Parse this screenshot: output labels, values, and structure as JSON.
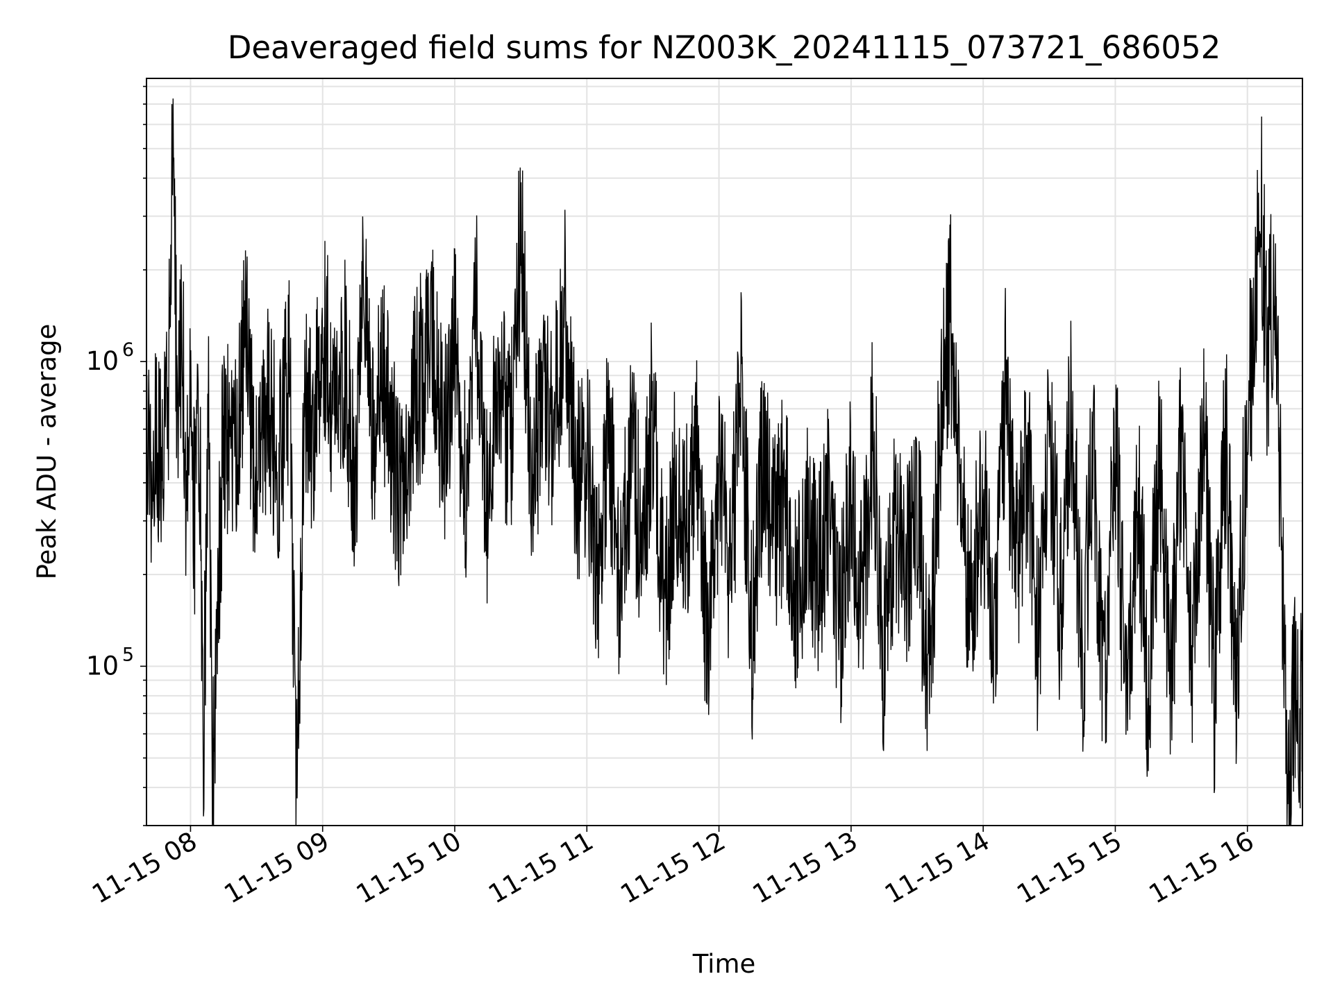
{
  "chart_data": {
    "type": "line",
    "title": "Deaveraged field sums for NZ003K_20241115_073721_686052",
    "xlabel": "Time",
    "ylabel": "Peak ADU - average",
    "yscale": "log",
    "xlim": [
      "2024-11-15 07:40",
      "2024-11-15 16:25"
    ],
    "ylim": [
      30000,
      8500000
    ],
    "grid": true,
    "line_color": "#000000",
    "x_ticks": [
      {
        "value": "2024-11-15 08:00",
        "label": "11-15 08"
      },
      {
        "value": "2024-11-15 09:00",
        "label": "11-15 09"
      },
      {
        "value": "2024-11-15 10:00",
        "label": "11-15 10"
      },
      {
        "value": "2024-11-15 11:00",
        "label": "11-15 11"
      },
      {
        "value": "2024-11-15 12:00",
        "label": "11-15 12"
      },
      {
        "value": "2024-11-15 13:00",
        "label": "11-15 13"
      },
      {
        "value": "2024-11-15 14:00",
        "label": "11-15 14"
      },
      {
        "value": "2024-11-15 15:00",
        "label": "11-15 15"
      },
      {
        "value": "2024-11-15 16:00",
        "label": "11-15 16"
      }
    ],
    "y_ticks": [
      {
        "value": 100000,
        "base": "10",
        "exp": "5"
      },
      {
        "value": 1000000,
        "base": "10",
        "exp": "6"
      }
    ],
    "series": [
      {
        "x": [
          "2024-11-15 07:40",
          "2024-11-15 07:44",
          "2024-11-15 07:48",
          "2024-11-15 07:50",
          "2024-11-15 07:52",
          "2024-11-15 07:54",
          "2024-11-15 07:56",
          "2024-11-15 07:58",
          "2024-11-15 08:00",
          "2024-11-15 08:02",
          "2024-11-15 08:04",
          "2024-11-15 08:06",
          "2024-11-15 08:08",
          "2024-11-15 08:10",
          "2024-11-15 08:15",
          "2024-11-15 08:20",
          "2024-11-15 08:25",
          "2024-11-15 08:30",
          "2024-11-15 08:35",
          "2024-11-15 08:40",
          "2024-11-15 08:45",
          "2024-11-15 08:48",
          "2024-11-15 08:52",
          "2024-11-15 08:56",
          "2024-11-15 09:00",
          "2024-11-15 09:05",
          "2024-11-15 09:10",
          "2024-11-15 09:15",
          "2024-11-15 09:18",
          "2024-11-15 09:22",
          "2024-11-15 09:28",
          "2024-11-15 09:35",
          "2024-11-15 09:40",
          "2024-11-15 09:45",
          "2024-11-15 09:50",
          "2024-11-15 09:55",
          "2024-11-15 10:00",
          "2024-11-15 10:05",
          "2024-11-15 10:10",
          "2024-11-15 10:15",
          "2024-11-15 10:20",
          "2024-11-15 10:25",
          "2024-11-15 10:30",
          "2024-11-15 10:35",
          "2024-11-15 10:40",
          "2024-11-15 10:45",
          "2024-11-15 10:50",
          "2024-11-15 10:55",
          "2024-11-15 11:00",
          "2024-11-15 11:05",
          "2024-11-15 11:10",
          "2024-11-15 11:15",
          "2024-11-15 11:20",
          "2024-11-15 11:25",
          "2024-11-15 11:30",
          "2024-11-15 11:35",
          "2024-11-15 11:40",
          "2024-11-15 11:45",
          "2024-11-15 11:50",
          "2024-11-15 11:55",
          "2024-11-15 12:00",
          "2024-11-15 12:05",
          "2024-11-15 12:10",
          "2024-11-15 12:15",
          "2024-11-15 12:20",
          "2024-11-15 12:25",
          "2024-11-15 12:30",
          "2024-11-15 12:35",
          "2024-11-15 12:40",
          "2024-11-15 12:45",
          "2024-11-15 12:50",
          "2024-11-15 12:55",
          "2024-11-15 13:00",
          "2024-11-15 13:05",
          "2024-11-15 13:10",
          "2024-11-15 13:15",
          "2024-11-15 13:20",
          "2024-11-15 13:25",
          "2024-11-15 13:30",
          "2024-11-15 13:35",
          "2024-11-15 13:40",
          "2024-11-15 13:45",
          "2024-11-15 13:50",
          "2024-11-15 13:55",
          "2024-11-15 14:00",
          "2024-11-15 14:05",
          "2024-11-15 14:10",
          "2024-11-15 14:15",
          "2024-11-15 14:20",
          "2024-11-15 14:25",
          "2024-11-15 14:30",
          "2024-11-15 14:35",
          "2024-11-15 14:40",
          "2024-11-15 14:45",
          "2024-11-15 14:50",
          "2024-11-15 14:55",
          "2024-11-15 15:00",
          "2024-11-15 15:05",
          "2024-11-15 15:10",
          "2024-11-15 15:15",
          "2024-11-15 15:20",
          "2024-11-15 15:25",
          "2024-11-15 15:30",
          "2024-11-15 15:35",
          "2024-11-15 15:40",
          "2024-11-15 15:45",
          "2024-11-15 15:50",
          "2024-11-15 15:55",
          "2024-11-15 16:00",
          "2024-11-15 16:03",
          "2024-11-15 16:06",
          "2024-11-15 16:09",
          "2024-11-15 16:12",
          "2024-11-15 16:14",
          "2024-11-15 16:16",
          "2024-11-15 16:18",
          "2024-11-15 16:20",
          "2024-11-15 16:22",
          "2024-11-15 16:24",
          "2024-11-15 16:25"
        ],
        "y": [
          500000,
          480000,
          600000,
          700000,
          6800000,
          550000,
          1500000,
          400000,
          700000,
          300000,
          600000,
          55000,
          700000,
          45000,
          600000,
          450000,
          1200000,
          350000,
          800000,
          400000,
          1000000,
          36000,
          800000,
          500000,
          1400000,
          700000,
          1000000,
          400000,
          2500000,
          600000,
          800000,
          350000,
          700000,
          900000,
          1200000,
          500000,
          1100000,
          400000,
          1500000,
          300000,
          1000000,
          500000,
          2700000,
          350000,
          800000,
          600000,
          1600000,
          400000,
          500000,
          200000,
          600000,
          180000,
          500000,
          250000,
          700000,
          150000,
          400000,
          300000,
          500000,
          100000,
          450000,
          200000,
          800000,
          120000,
          500000,
          250000,
          400000,
          150000,
          300000,
          200000,
          350000,
          120000,
          400000,
          150000,
          600000,
          100000,
          300000,
          200000,
          350000,
          80000,
          500000,
          1500000,
          300000,
          150000,
          400000,
          100000,
          800000,
          200000,
          500000,
          120000,
          600000,
          150000,
          700000,
          100000,
          500000,
          80000,
          600000,
          70000,
          400000,
          80000,
          500000,
          70000,
          600000,
          90000,
          700000,
          80000,
          600000,
          70000,
          800000,
          1200000,
          3500000,
          1000000,
          2000000,
          700000,
          200000,
          45000,
          55000,
          90000,
          70000,
          85000
        ]
      }
    ]
  }
}
